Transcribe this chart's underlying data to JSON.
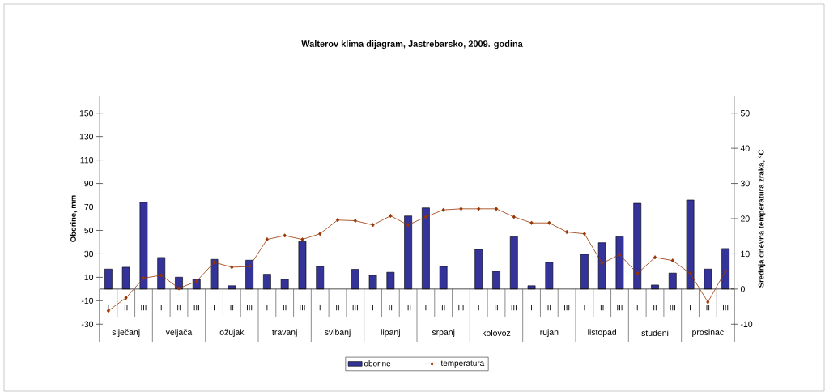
{
  "chart_data": {
    "type": "bar",
    "title": "Walterov klima dijagram, Jastrebarsko, 2009. godina",
    "ylabel": "Oborine, mm",
    "y2label": "Srednja dnevna temperatura zraka, °C",
    "categories": [
      "I",
      "II",
      "III",
      "I",
      "II",
      "III",
      "I",
      "II",
      "III",
      "I",
      "II",
      "III",
      "I",
      "II",
      "III",
      "I",
      "II",
      "III",
      "I",
      "II",
      "III",
      "I",
      "II",
      "III",
      "I",
      "II",
      "III",
      "I",
      "II",
      "III",
      "I",
      "II",
      "III",
      "I",
      "II",
      "III"
    ],
    "series": [
      {
        "name": "oborine",
        "color": "#333399",
        "values": [
          17.0,
          18.6,
          74.0,
          26.9,
          10.1,
          8.3,
          25.3,
          2.8,
          24.6,
          12.6,
          8.3,
          40.5,
          19.3,
          0,
          16.8,
          11.7,
          14.3,
          62.3,
          69.2,
          19.3,
          0,
          33.8,
          15.2,
          44.6,
          2.8,
          22.8,
          0,
          29.7,
          39.5,
          44.6,
          73.1,
          3.4,
          13.6,
          75.9,
          17.0,
          34.5
        ]
      },
      {
        "name": "temperatura",
        "type": "line",
        "axis": "y2",
        "color": "#993300",
        "values": [
          -6.2,
          -2.5,
          3.1,
          3.9,
          0.2,
          2.2,
          7.6,
          6.2,
          6.4,
          14.1,
          15.2,
          14.1,
          15.7,
          19.6,
          19.4,
          18.2,
          20.8,
          18.2,
          20.5,
          22.5,
          22.8,
          22.8,
          22.8,
          20.5,
          18.8,
          18.8,
          16.2,
          15.7,
          7.3,
          9.8,
          4.4,
          9.0,
          8.1,
          4.4,
          -3.7,
          5.1
        ]
      }
    ],
    "marker": "diamond",
    "ylim": [
      -45,
      165
    ],
    "yticks": [
      -30,
      -10,
      10,
      30,
      50,
      70,
      90,
      110,
      130,
      150
    ],
    "y2lim": [
      -15,
      55
    ],
    "y2ticks": [
      -10,
      0,
      10,
      20,
      30,
      40,
      50
    ],
    "legend": "bottom",
    "annotations": [
      "siječanj",
      "veljača",
      "ožujak",
      "travanj",
      "svibanj",
      "lipanj",
      "srpanj",
      "kolovoz",
      "rujan",
      "listopad",
      "studeni",
      "prosinac"
    ]
  }
}
